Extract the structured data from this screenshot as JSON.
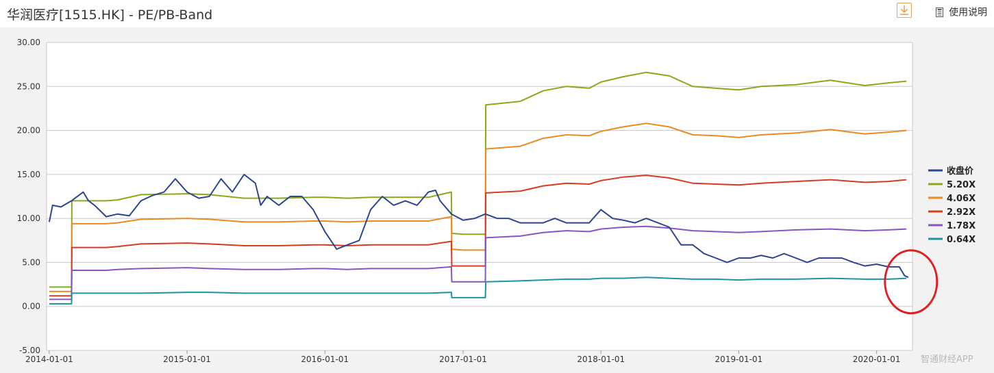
{
  "header": {
    "title": "华润医疗[1515.HK] - PE/PB-Band",
    "help_label": "使用说明"
  },
  "icons": {
    "download": "download-icon",
    "help": "document-icon"
  },
  "watermark": "智通财经APP",
  "chart_data": {
    "type": "line",
    "title": "华润医疗[1515.HK] - PE/PB-Band",
    "xlabel": "",
    "ylabel": "",
    "xlim": [
      "2013-12-25",
      "2020-04-05"
    ],
    "ylim": [
      -5,
      30
    ],
    "y_ticks": [
      "30.00",
      "25.00",
      "20.00",
      "15.00",
      "10.00",
      "5.00",
      "0.00",
      "-5.00"
    ],
    "x_ticks": [
      "2014-01-01",
      "2015-01-01",
      "2016-01-01",
      "2017-01-01",
      "2018-01-01",
      "2019-01-01",
      "2020-01-01"
    ],
    "grid": "horizontal",
    "legend": "right",
    "series": [
      {
        "name": "收盘价",
        "color": "#2b4591",
        "x": [
          "2014-01-01",
          "2014-01-10",
          "2014-02-01",
          "2014-03-01",
          "2014-04-01",
          "2014-04-15",
          "2014-05-01",
          "2014-06-01",
          "2014-07-01",
          "2014-08-01",
          "2014-09-01",
          "2014-10-01",
          "2014-11-01",
          "2014-12-01",
          "2015-01-01",
          "2015-02-01",
          "2015-03-01",
          "2015-04-01",
          "2015-05-01",
          "2015-06-01",
          "2015-07-01",
          "2015-07-15",
          "2015-08-01",
          "2015-09-01",
          "2015-10-01",
          "2015-11-01",
          "2015-12-01",
          "2016-01-01",
          "2016-02-01",
          "2016-03-01",
          "2016-04-01",
          "2016-05-01",
          "2016-06-01",
          "2016-07-01",
          "2016-08-01",
          "2016-09-01",
          "2016-10-01",
          "2016-10-20",
          "2016-11-01",
          "2016-12-01",
          "2017-01-01",
          "2017-02-01",
          "2017-03-01",
          "2017-04-01",
          "2017-05-01",
          "2017-06-01",
          "2017-07-01",
          "2017-08-01",
          "2017-09-01",
          "2017-10-01",
          "2017-11-01",
          "2017-12-01",
          "2018-01-01",
          "2018-02-01",
          "2018-03-01",
          "2018-04-01",
          "2018-05-01",
          "2018-06-01",
          "2018-07-01",
          "2018-08-01",
          "2018-09-01",
          "2018-10-01",
          "2018-11-01",
          "2018-12-01",
          "2019-01-01",
          "2019-02-01",
          "2019-03-01",
          "2019-04-01",
          "2019-05-01",
          "2019-06-01",
          "2019-07-01",
          "2019-08-01",
          "2019-09-01",
          "2019-10-01",
          "2019-11-01",
          "2019-12-01",
          "2020-01-01",
          "2020-02-01",
          "2020-03-01",
          "2020-03-15",
          "2020-03-25"
        ],
        "values": [
          9.6,
          11.5,
          11.3,
          12.0,
          13.0,
          12.0,
          11.5,
          10.2,
          10.5,
          10.3,
          12.0,
          12.6,
          13.0,
          14.5,
          13.0,
          12.3,
          12.5,
          14.5,
          13.0,
          15.0,
          14.0,
          11.5,
          12.5,
          11.5,
          12.5,
          12.5,
          11.0,
          8.5,
          6.5,
          7.0,
          7.5,
          11.0,
          12.5,
          11.5,
          12.0,
          11.5,
          13.0,
          13.2,
          12.0,
          10.5,
          9.8,
          10.0,
          10.5,
          10.0,
          10.0,
          9.5,
          9.5,
          9.5,
          10.0,
          9.5,
          9.5,
          9.5,
          11.0,
          10.0,
          9.8,
          9.5,
          10.0,
          9.5,
          9.0,
          7.0,
          7.0,
          6.0,
          5.5,
          5.0,
          5.5,
          5.5,
          5.8,
          5.5,
          6.0,
          5.5,
          5.0,
          5.5,
          5.5,
          5.5,
          5.0,
          4.6,
          4.8,
          4.5,
          4.5,
          3.5,
          3.3
        ]
      },
      {
        "name": "5.20X",
        "color": "#8aa919",
        "x": [
          "2014-01-01",
          "2014-03-01",
          "2014-03-02",
          "2014-06-01",
          "2014-07-01",
          "2014-09-01",
          "2015-01-01",
          "2015-03-01",
          "2015-06-01",
          "2015-09-01",
          "2015-12-01",
          "2016-01-01",
          "2016-03-01",
          "2016-05-01",
          "2016-07-01",
          "2016-10-01",
          "2016-12-01",
          "2016-12-02",
          "2017-01-01",
          "2017-03-01",
          "2017-03-02",
          "2017-06-01",
          "2017-08-01",
          "2017-10-01",
          "2017-12-01",
          "2018-01-01",
          "2018-03-01",
          "2018-05-01",
          "2018-07-01",
          "2018-09-01",
          "2018-11-01",
          "2019-01-01",
          "2019-03-01",
          "2019-06-01",
          "2019-09-01",
          "2019-12-01",
          "2020-02-01",
          "2020-03-20"
        ],
        "values": [
          2.2,
          2.2,
          12.0,
          12.0,
          12.1,
          12.7,
          12.8,
          12.7,
          12.3,
          12.3,
          12.4,
          12.4,
          12.3,
          12.4,
          12.4,
          12.4,
          13.0,
          8.3,
          8.2,
          8.2,
          22.9,
          23.3,
          24.5,
          25.0,
          24.8,
          25.5,
          26.1,
          26.6,
          26.2,
          25.0,
          24.8,
          24.6,
          25.0,
          25.2,
          25.7,
          25.1,
          25.4,
          25.6
        ]
      },
      {
        "name": "4.06X",
        "color": "#ec8a1e",
        "x": [
          "2014-01-01",
          "2014-03-01",
          "2014-03-02",
          "2014-06-01",
          "2014-07-01",
          "2014-09-01",
          "2015-01-01",
          "2015-03-01",
          "2015-06-01",
          "2015-09-01",
          "2015-12-01",
          "2016-01-01",
          "2016-03-01",
          "2016-05-01",
          "2016-07-01",
          "2016-10-01",
          "2016-12-01",
          "2016-12-02",
          "2017-01-01",
          "2017-03-01",
          "2017-03-02",
          "2017-06-01",
          "2017-08-01",
          "2017-10-01",
          "2017-12-01",
          "2018-01-01",
          "2018-03-01",
          "2018-05-01",
          "2018-07-01",
          "2018-09-01",
          "2018-11-01",
          "2019-01-01",
          "2019-03-01",
          "2019-06-01",
          "2019-09-01",
          "2019-12-01",
          "2020-02-01",
          "2020-03-20"
        ],
        "values": [
          1.7,
          1.7,
          9.4,
          9.4,
          9.5,
          9.9,
          10.0,
          9.9,
          9.6,
          9.6,
          9.7,
          9.7,
          9.6,
          9.7,
          9.7,
          9.7,
          10.2,
          6.5,
          6.4,
          6.4,
          17.9,
          18.2,
          19.1,
          19.5,
          19.4,
          19.9,
          20.4,
          20.8,
          20.4,
          19.5,
          19.4,
          19.2,
          19.5,
          19.7,
          20.1,
          19.6,
          19.8,
          20.0
        ]
      },
      {
        "name": "2.92X",
        "color": "#d83c1d",
        "x": [
          "2014-01-01",
          "2014-03-01",
          "2014-03-02",
          "2014-06-01",
          "2014-07-01",
          "2014-09-01",
          "2015-01-01",
          "2015-03-01",
          "2015-06-01",
          "2015-09-01",
          "2015-12-01",
          "2016-01-01",
          "2016-03-01",
          "2016-05-01",
          "2016-07-01",
          "2016-10-01",
          "2016-12-01",
          "2016-12-02",
          "2017-01-01",
          "2017-03-01",
          "2017-03-02",
          "2017-06-01",
          "2017-08-01",
          "2017-10-01",
          "2017-12-01",
          "2018-01-01",
          "2018-03-01",
          "2018-05-01",
          "2018-07-01",
          "2018-09-01",
          "2018-11-01",
          "2019-01-01",
          "2019-03-01",
          "2019-06-01",
          "2019-09-01",
          "2019-12-01",
          "2020-02-01",
          "2020-03-20"
        ],
        "values": [
          1.2,
          1.2,
          6.7,
          6.7,
          6.8,
          7.1,
          7.2,
          7.1,
          6.9,
          6.9,
          7.0,
          7.0,
          6.9,
          7.0,
          7.0,
          7.0,
          7.4,
          4.6,
          4.6,
          4.6,
          12.9,
          13.1,
          13.7,
          14.0,
          13.9,
          14.3,
          14.7,
          14.9,
          14.6,
          14.0,
          13.9,
          13.8,
          14.0,
          14.2,
          14.4,
          14.1,
          14.2,
          14.4
        ]
      },
      {
        "name": "1.78X",
        "color": "#8853c4",
        "x": [
          "2014-01-01",
          "2014-03-01",
          "2014-03-02",
          "2014-06-01",
          "2014-07-01",
          "2014-09-01",
          "2015-01-01",
          "2015-03-01",
          "2015-06-01",
          "2015-09-01",
          "2015-12-01",
          "2016-01-01",
          "2016-03-01",
          "2016-05-01",
          "2016-07-01",
          "2016-10-01",
          "2016-12-01",
          "2016-12-02",
          "2017-01-01",
          "2017-03-01",
          "2017-03-02",
          "2017-06-01",
          "2017-08-01",
          "2017-10-01",
          "2017-12-01",
          "2018-01-01",
          "2018-03-01",
          "2018-05-01",
          "2018-07-01",
          "2018-09-01",
          "2018-11-01",
          "2019-01-01",
          "2019-03-01",
          "2019-06-01",
          "2019-09-01",
          "2019-12-01",
          "2020-02-01",
          "2020-03-20"
        ],
        "values": [
          0.8,
          0.8,
          4.1,
          4.1,
          4.2,
          4.3,
          4.4,
          4.3,
          4.2,
          4.2,
          4.3,
          4.3,
          4.2,
          4.3,
          4.3,
          4.3,
          4.5,
          2.8,
          2.8,
          2.8,
          7.8,
          8.0,
          8.4,
          8.6,
          8.5,
          8.8,
          9.0,
          9.1,
          8.9,
          8.6,
          8.5,
          8.4,
          8.5,
          8.7,
          8.8,
          8.6,
          8.7,
          8.8
        ]
      },
      {
        "name": "0.64X",
        "color": "#1f93a3",
        "x": [
          "2014-01-01",
          "2014-03-01",
          "2014-03-02",
          "2014-06-01",
          "2014-07-01",
          "2014-09-01",
          "2015-01-01",
          "2015-03-01",
          "2015-06-01",
          "2015-09-01",
          "2015-12-01",
          "2016-01-01",
          "2016-03-01",
          "2016-05-01",
          "2016-07-01",
          "2016-10-01",
          "2016-12-01",
          "2016-12-02",
          "2017-01-01",
          "2017-03-01",
          "2017-03-02",
          "2017-06-01",
          "2017-08-01",
          "2017-10-01",
          "2017-12-01",
          "2018-01-01",
          "2018-03-01",
          "2018-05-01",
          "2018-07-01",
          "2018-09-01",
          "2018-11-01",
          "2019-01-01",
          "2019-03-01",
          "2019-06-01",
          "2019-09-01",
          "2019-12-01",
          "2020-02-01",
          "2020-03-20"
        ],
        "values": [
          0.3,
          0.3,
          1.5,
          1.5,
          1.5,
          1.5,
          1.6,
          1.6,
          1.5,
          1.5,
          1.5,
          1.5,
          1.5,
          1.5,
          1.5,
          1.5,
          1.6,
          1.0,
          1.0,
          1.0,
          2.8,
          2.9,
          3.0,
          3.1,
          3.1,
          3.2,
          3.2,
          3.3,
          3.2,
          3.1,
          3.1,
          3.0,
          3.1,
          3.1,
          3.2,
          3.1,
          3.1,
          3.2
        ]
      }
    ],
    "annotations": [
      {
        "type": "circle",
        "color": "#e02020",
        "x": "2020-04-01",
        "y": 2.8
      }
    ]
  }
}
